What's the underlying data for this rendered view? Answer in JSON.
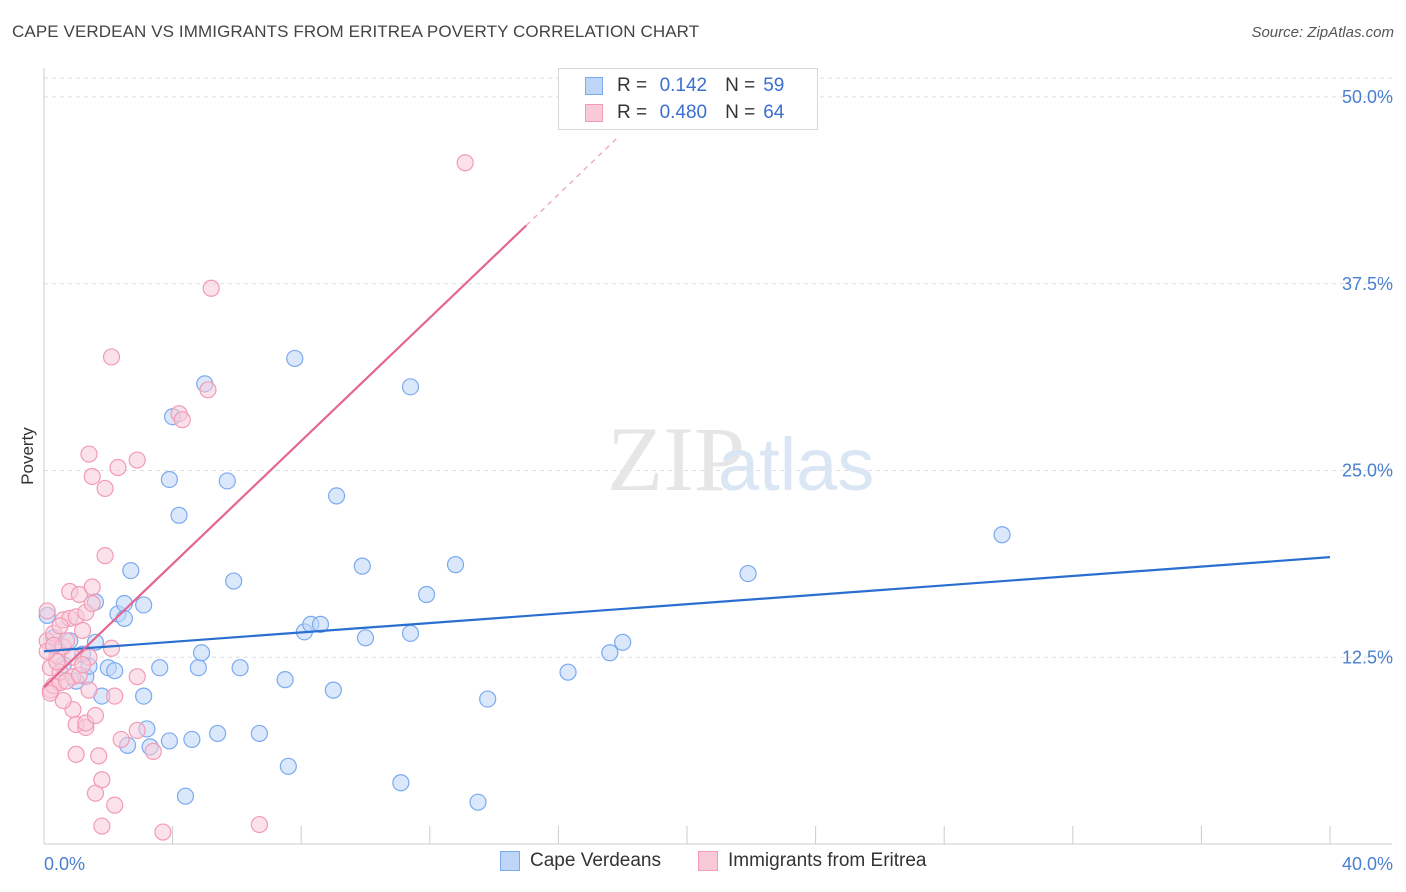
{
  "header": {
    "title": "CAPE VERDEAN VS IMMIGRANTS FROM ERITREA POVERTY CORRELATION CHART",
    "source": "Source: ZipAtlas.com"
  },
  "watermark": {
    "zip": "ZIP",
    "atlas": "atlas"
  },
  "legend": {
    "r_label": "R =",
    "n_label": "N =",
    "series": [
      {
        "name": "Cape Verdeans",
        "r": "0.142",
        "n": "59"
      },
      {
        "name": "Immigrants from Eritrea",
        "r": "0.480",
        "n": "64"
      }
    ]
  },
  "chart_data": {
    "type": "scatter",
    "title": "CAPE VERDEAN VS IMMIGRANTS FROM ERITREA POVERTY CORRELATION CHART",
    "xlabel": "",
    "ylabel": "Poverty",
    "xlim": [
      0,
      40
    ],
    "ylim": [
      0,
      50
    ],
    "x_tick_labels": [
      "0.0%",
      "40.0%"
    ],
    "y_ticks": [
      12.5,
      25.0,
      37.5,
      50.0
    ],
    "y_tick_labels": [
      "12.5%",
      "25.0%",
      "37.5%",
      "50.0%"
    ],
    "grid": true,
    "legend_position": "top-center",
    "series": [
      {
        "name": "Cape Verdeans",
        "color": "#7aaaf0",
        "fill": "#bed5f7",
        "trend_color": "#2a6fd0",
        "trend": {
          "x0": 0,
          "y0": 12.9,
          "x1": 40,
          "y1": 19.2
        },
        "points": [
          [
            0.3,
            13.8
          ],
          [
            0.6,
            12.0
          ],
          [
            0.8,
            13.6
          ],
          [
            1.0,
            10.9
          ],
          [
            1.2,
            12.7
          ],
          [
            1.3,
            11.2
          ],
          [
            1.4,
            11.9
          ],
          [
            1.6,
            13.5
          ],
          [
            1.6,
            16.2
          ],
          [
            1.8,
            9.9
          ],
          [
            2.0,
            11.8
          ],
          [
            2.2,
            11.6
          ],
          [
            2.3,
            15.4
          ],
          [
            2.5,
            15.1
          ],
          [
            2.5,
            16.1
          ],
          [
            2.6,
            6.6
          ],
          [
            2.7,
            18.3
          ],
          [
            3.1,
            16.0
          ],
          [
            3.1,
            9.9
          ],
          [
            3.2,
            7.7
          ],
          [
            3.3,
            6.5
          ],
          [
            3.6,
            11.8
          ],
          [
            3.9,
            24.4
          ],
          [
            3.9,
            6.9
          ],
          [
            4.0,
            28.6
          ],
          [
            4.2,
            22.0
          ],
          [
            4.4,
            3.2
          ],
          [
            4.6,
            7.0
          ],
          [
            4.8,
            11.8
          ],
          [
            4.9,
            12.8
          ],
          [
            5.0,
            30.8
          ],
          [
            5.4,
            7.4
          ],
          [
            5.7,
            24.3
          ],
          [
            5.9,
            17.6
          ],
          [
            6.1,
            11.8
          ],
          [
            6.7,
            7.4
          ],
          [
            7.5,
            11.0
          ],
          [
            7.6,
            5.2
          ],
          [
            7.8,
            32.5
          ],
          [
            8.1,
            14.2
          ],
          [
            8.3,
            14.7
          ],
          [
            8.6,
            14.7
          ],
          [
            9.0,
            10.3
          ],
          [
            9.1,
            23.3
          ],
          [
            9.9,
            18.6
          ],
          [
            10.0,
            13.8
          ],
          [
            11.1,
            4.1
          ],
          [
            11.4,
            30.6
          ],
          [
            11.4,
            14.1
          ],
          [
            11.9,
            16.7
          ],
          [
            12.8,
            18.7
          ],
          [
            13.5,
            2.8
          ],
          [
            13.8,
            9.7
          ],
          [
            16.3,
            11.5
          ],
          [
            17.6,
            12.8
          ],
          [
            18.0,
            13.5
          ],
          [
            21.9,
            18.1
          ],
          [
            29.8,
            20.7
          ],
          [
            0.1,
            15.3
          ]
        ]
      },
      {
        "name": "Immigrants from Eritrea",
        "color": "#f29bb5",
        "fill": "#f8cad8",
        "trend_color": "#e3668f",
        "trend": {
          "x0": 0,
          "y0": 10.5,
          "x1": 15.0,
          "y1": 41.4
        },
        "trend_dashed_to": {
          "x": 17.8,
          "y": 47.2
        },
        "points": [
          [
            0.1,
            15.6
          ],
          [
            0.1,
            13.6
          ],
          [
            0.2,
            11.8
          ],
          [
            0.2,
            10.3
          ],
          [
            0.3,
            14.1
          ],
          [
            0.3,
            10.6
          ],
          [
            0.4,
            12.6
          ],
          [
            0.5,
            10.8
          ],
          [
            0.5,
            11.5
          ],
          [
            0.6,
            13.2
          ],
          [
            0.6,
            15.0
          ],
          [
            0.7,
            13.6
          ],
          [
            0.8,
            15.1
          ],
          [
            0.8,
            16.9
          ],
          [
            0.9,
            12.5
          ],
          [
            0.9,
            11.2
          ],
          [
            0.9,
            9.0
          ],
          [
            1.0,
            15.2
          ],
          [
            1.0,
            8.0
          ],
          [
            1.0,
            6.0
          ],
          [
            1.1,
            16.7
          ],
          [
            1.2,
            14.3
          ],
          [
            1.3,
            7.8
          ],
          [
            1.3,
            8.1
          ],
          [
            1.3,
            15.5
          ],
          [
            1.4,
            12.5
          ],
          [
            1.5,
            16.1
          ],
          [
            1.4,
            10.3
          ],
          [
            1.5,
            17.2
          ],
          [
            1.5,
            24.6
          ],
          [
            1.4,
            26.1
          ],
          [
            1.6,
            8.6
          ],
          [
            1.6,
            3.4
          ],
          [
            1.7,
            5.9
          ],
          [
            1.8,
            4.3
          ],
          [
            1.8,
            1.2
          ],
          [
            1.9,
            19.3
          ],
          [
            1.9,
            23.8
          ],
          [
            2.1,
            32.6
          ],
          [
            2.1,
            13.1
          ],
          [
            2.2,
            2.6
          ],
          [
            2.2,
            9.9
          ],
          [
            2.3,
            25.2
          ],
          [
            2.4,
            7.0
          ],
          [
            2.9,
            7.6
          ],
          [
            2.9,
            25.7
          ],
          [
            2.9,
            11.2
          ],
          [
            3.4,
            6.2
          ],
          [
            3.7,
            0.8
          ],
          [
            4.2,
            28.8
          ],
          [
            4.3,
            28.4
          ],
          [
            5.1,
            30.4
          ],
          [
            5.2,
            37.2
          ],
          [
            6.7,
            1.3
          ],
          [
            13.1,
            45.6
          ],
          [
            0.2,
            10.1
          ],
          [
            0.4,
            12.2
          ],
          [
            0.7,
            10.9
          ],
          [
            1.1,
            11.3
          ],
          [
            0.1,
            12.9
          ],
          [
            0.3,
            13.3
          ],
          [
            0.5,
            14.6
          ],
          [
            1.2,
            12.0
          ],
          [
            0.6,
            9.6
          ]
        ]
      }
    ]
  },
  "bottom_legend": [
    "Cape Verdeans",
    "Immigrants from Eritrea"
  ]
}
